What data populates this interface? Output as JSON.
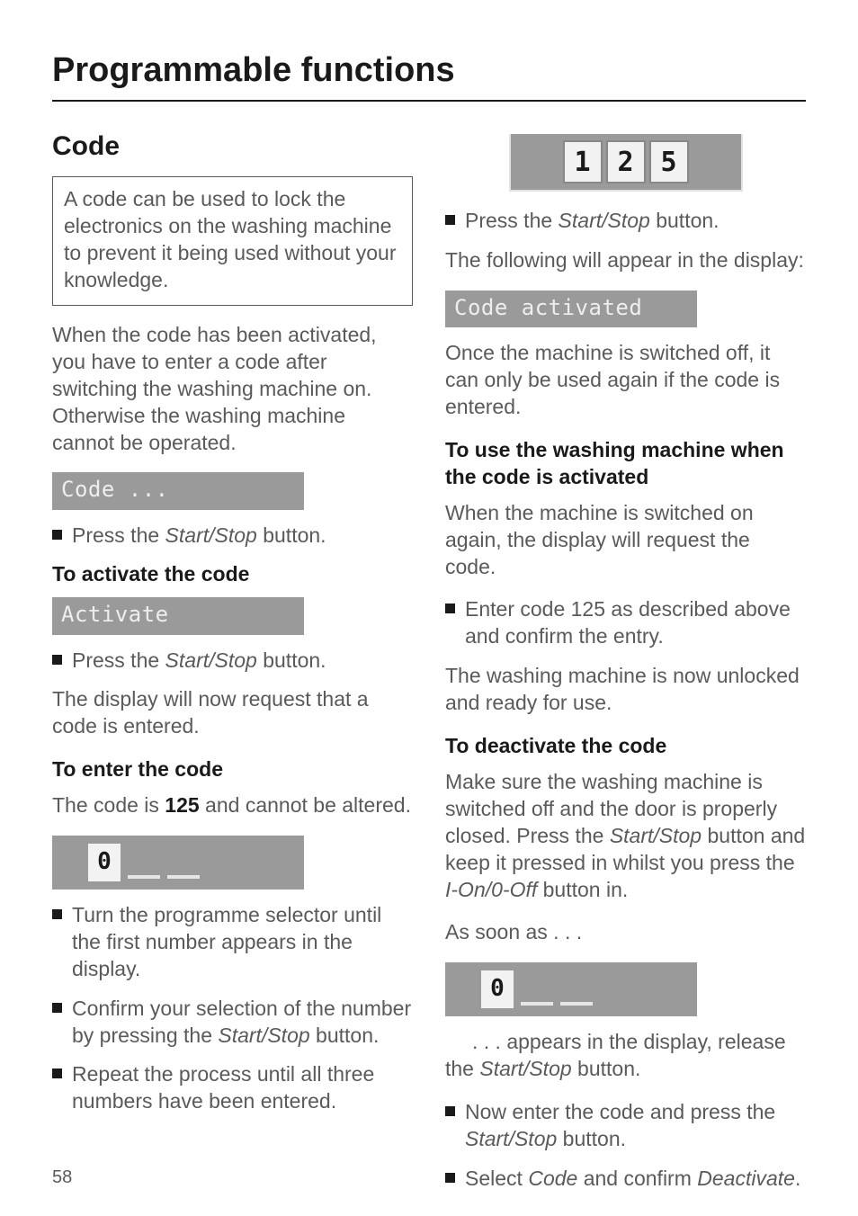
{
  "page_title": "Programmable functions",
  "page_number": "58",
  "left": {
    "heading": "Code",
    "box_text": "A code can be used to lock the electronics on the washing machine to prevent it being used without your knowledge.",
    "intro": "When the code has been activated, you have to enter a code after switching the washing machine on. Otherwise the washing machine cannot be operated.",
    "display_code": "Code ...",
    "press1_prefix": "Press the ",
    "press1_btn": "Start/Stop",
    "press1_suffix": " button.",
    "h_activate": "To activate the code",
    "display_activate": "Activate",
    "press2_prefix": "Press the ",
    "press2_btn": "Start/Stop",
    "press2_suffix": " button.",
    "request_p": "The display will now request that a code is entered.",
    "h_enter": "To enter the code",
    "code_line_a": "The code is ",
    "code_value": "125",
    "code_line_b": " and cannot be altered.",
    "digit0": "0",
    "b1": "Turn the programme selector until the first number appears in the display.",
    "b2_a": "Confirm your selection of the number by pressing the ",
    "b2_btn": "Start/Stop",
    "b2_b": " button.",
    "b3": "Repeat the process until all three numbers have been entered."
  },
  "right": {
    "d1": "1",
    "d2": "2",
    "d3": "5",
    "press3_prefix": "Press the ",
    "press3_btn": "Start/Stop",
    "press3_suffix": " button.",
    "follow_p": "The following will appear in the display:",
    "display_activated": "Code activated",
    "once_p": "Once the machine is switched off, it can only be used again if the code is entered.",
    "h_use": "To use the washing machine when the code is activated",
    "use_p": "When the machine is switched on again, the display will request the code.",
    "b_enter125": "Enter code 125 as described above and confirm the entry.",
    "unlocked_p": "The washing machine is now unlocked and ready for use.",
    "h_deactivate": "To deactivate the code",
    "deact_p1_a": "Make sure the washing machine is switched off and the door is properly closed. Press the ",
    "deact_p1_btn": "Start/Stop",
    "deact_p1_b": " button and keep it pressed in whilst you press the ",
    "deact_p1_btn2": "I-On/0-Off",
    "deact_p1_c": " button in.",
    "assoon": "As soon as . . .",
    "digit0b": "0",
    "appears_a": ". . . appears in the display, release the ",
    "appears_btn": "Start/Stop",
    "appears_b": " button.",
    "b_now_a": "Now enter the code and press the ",
    "b_now_btn": "Start/Stop",
    "b_now_b": " button.",
    "b_select_a": "Select ",
    "b_select_i1": "Code",
    "b_select_b": " and confirm ",
    "b_select_i2": "Deactivate",
    "b_select_c": "."
  }
}
